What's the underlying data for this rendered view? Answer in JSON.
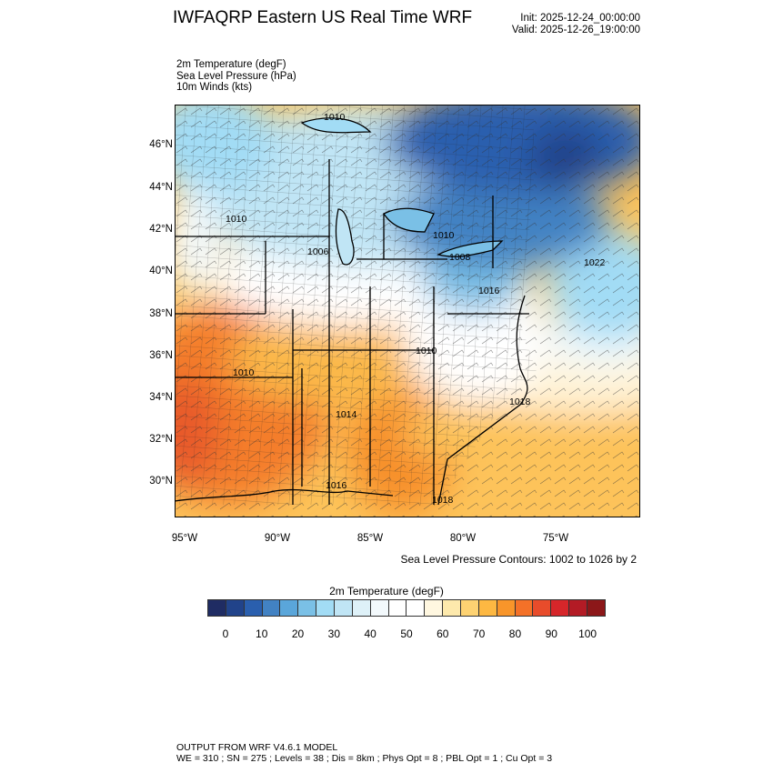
{
  "header": {
    "title": "IWFAQRP Eastern US Real Time WRF",
    "init": "Init: 2025-12-24_00:00:00",
    "valid": "Valid: 2025-12-26_19:00:00"
  },
  "fields": [
    "2m Temperature   (degF)",
    "Sea Level Pressure   (hPa)",
    "10m Winds   (kts)"
  ],
  "map": {
    "lat_labels": [
      "46°N",
      "44°N",
      "42°N",
      "40°N",
      "38°N",
      "36°N",
      "34°N",
      "32°N",
      "30°N"
    ],
    "lon_labels": [
      "95°W",
      "90°W",
      "85°W",
      "80°W",
      "75°W"
    ],
    "contour_labels": [
      "1010",
      "1010",
      "1006",
      "1010",
      "1008",
      "1022",
      "1016",
      "1010",
      "1010",
      "1014",
      "1018",
      "1016",
      "1018"
    ]
  },
  "contour_note": "Sea Level Pressure Contours: 1002 to 1026 by 2",
  "colorbar": {
    "title": "2m Temperature  (degF)",
    "ticks": [
      "0",
      "10",
      "20",
      "30",
      "40",
      "50",
      "60",
      "70",
      "80",
      "90",
      "100"
    ],
    "colors": [
      "#1f2c63",
      "#21438a",
      "#2a5fae",
      "#4282c3",
      "#5aa6da",
      "#7ac0e6",
      "#a2dcf5",
      "#c0e5f5",
      "#def1f8",
      "#f3f9fc",
      "#ffffff",
      "#ffffff",
      "#fff7e0",
      "#fde9ac",
      "#fdd272",
      "#fdb842",
      "#f8952a",
      "#f47128",
      "#e84c2b",
      "#d6262a",
      "#b31b25",
      "#8c1719"
    ]
  },
  "footer": {
    "line1": "OUTPUT FROM WRF V4.6.1 MODEL",
    "line2": "WE = 310 ; SN = 275 ; Levels = 38 ; Dis = 8km ; Phys Opt = 8 ; PBL Opt = 1 ; Cu Opt = 3"
  }
}
